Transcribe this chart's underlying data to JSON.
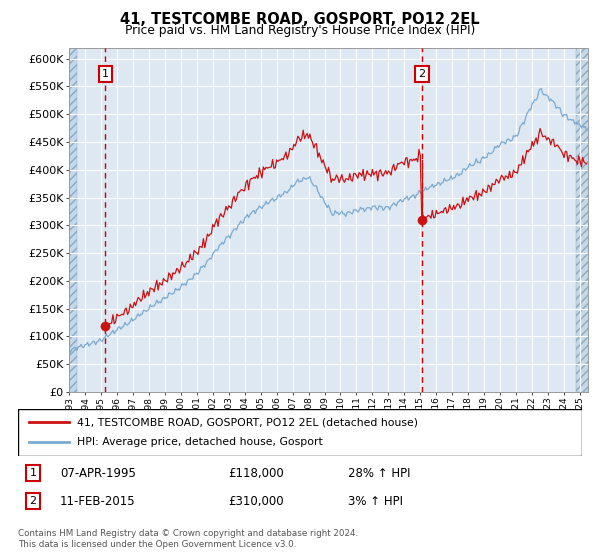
{
  "title1": "41, TESTCOMBE ROAD, GOSPORT, PO12 2EL",
  "title2": "Price paid vs. HM Land Registry's House Price Index (HPI)",
  "ylim": [
    0,
    620000
  ],
  "yticks": [
    0,
    50000,
    100000,
    150000,
    200000,
    250000,
    300000,
    350000,
    400000,
    450000,
    500000,
    550000,
    600000
  ],
  "ytick_labels": [
    "£0",
    "£50K",
    "£100K",
    "£150K",
    "£200K",
    "£250K",
    "£300K",
    "£350K",
    "£400K",
    "£450K",
    "£500K",
    "£550K",
    "£600K"
  ],
  "sale1_year": 1995.27,
  "sale1_price": 118000,
  "sale2_year": 2015.11,
  "sale2_price": 310000,
  "xlim_start": 1993.0,
  "xlim_end": 2025.5,
  "legend_line1": "41, TESTCOMBE ROAD, GOSPORT, PO12 2EL (detached house)",
  "legend_line2": "HPI: Average price, detached house, Gosport",
  "ann1": [
    "1",
    "07-APR-1995",
    "£118,000",
    "28% ↑ HPI"
  ],
  "ann2": [
    "2",
    "11-FEB-2015",
    "£310,000",
    "3% ↑ HPI"
  ],
  "footnote": "Contains HM Land Registry data © Crown copyright and database right 2024.\nThis data is licensed under the Open Government Licence v3.0.",
  "hpi_color": "#7aaad0",
  "price_color": "#cc1111",
  "bg_color": "#dde8f3",
  "grid_color": "#ffffff"
}
